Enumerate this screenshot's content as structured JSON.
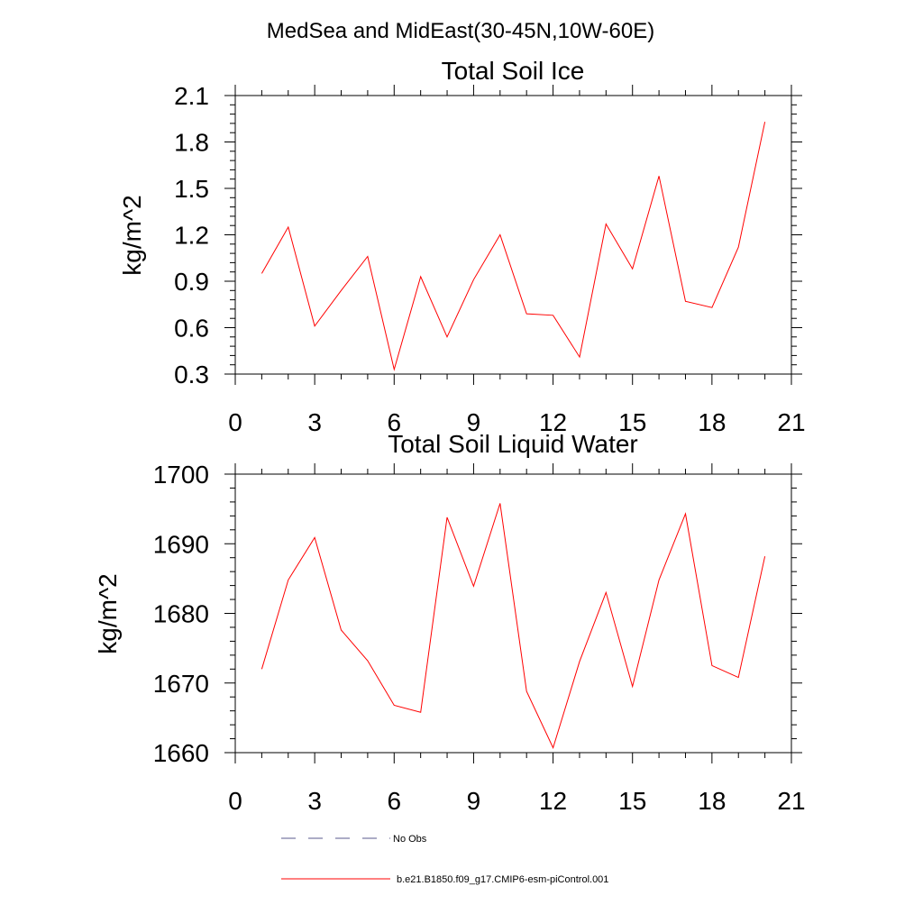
{
  "title": "MedSea and MidEast(30-45N,10W-60E)",
  "chart_data": [
    {
      "type": "line",
      "title": "Total Soil Ice",
      "xlabel": "",
      "ylabel": "kg/m^2",
      "xlim": [
        0,
        21
      ],
      "ylim": [
        0.3,
        2.1
      ],
      "xticks": [
        0,
        3,
        6,
        9,
        12,
        15,
        18,
        21
      ],
      "yticks": [
        0.3,
        0.6,
        0.9,
        1.2,
        1.5,
        1.8,
        2.1
      ],
      "ytick_labels": [
        "0.3",
        "0.6",
        "0.9",
        "1.2",
        "1.5",
        "1.8",
        "2.1"
      ],
      "series": [
        {
          "name": "b.e21.B1850.f09_g17.CMIP6-esm-piControl.001",
          "color": "#ff0000",
          "x": [
            1,
            2,
            3,
            4,
            5,
            6,
            7,
            8,
            9,
            10,
            11,
            12,
            13,
            14,
            15,
            16,
            17,
            18,
            19,
            20
          ],
          "values": [
            0.95,
            1.25,
            0.61,
            0.84,
            1.06,
            0.33,
            0.93,
            0.54,
            0.91,
            1.2,
            0.69,
            0.68,
            0.41,
            1.27,
            0.98,
            1.58,
            0.77,
            0.73,
            1.12,
            1.93
          ]
        }
      ]
    },
    {
      "type": "line",
      "title": "Total Soil Liquid Water",
      "xlabel": "",
      "ylabel": "kg/m^2",
      "xlim": [
        0,
        21
      ],
      "ylim": [
        1660,
        1700
      ],
      "xticks": [
        0,
        3,
        6,
        9,
        12,
        15,
        18,
        21
      ],
      "yticks": [
        1660,
        1670,
        1680,
        1690,
        1700
      ],
      "ytick_labels": [
        "1660",
        "1670",
        "1680",
        "1690",
        "1700"
      ],
      "series": [
        {
          "name": "b.e21.B1850.f09_g17.CMIP6-esm-piControl.001",
          "color": "#ff0000",
          "x": [
            1,
            2,
            3,
            4,
            5,
            6,
            7,
            8,
            9,
            10,
            11,
            12,
            13,
            14,
            15,
            16,
            17,
            18,
            19,
            20
          ],
          "values": [
            1672,
            1684.8,
            1690.9,
            1677.6,
            1673.2,
            1666.8,
            1665.8,
            1693.8,
            1683.9,
            1695.8,
            1668.8,
            1660.7,
            1673.1,
            1683,
            1669.5,
            1684.8,
            1694.3,
            1672.5,
            1670.8,
            1688.2
          ]
        }
      ]
    }
  ],
  "legend": [
    {
      "label": "No Obs",
      "style": "dashed",
      "color": "#5a5a8c"
    },
    {
      "label": "b.e21.B1850.f09_g17.CMIP6-esm-piControl.001",
      "style": "solid",
      "color": "#ff0000"
    }
  ]
}
